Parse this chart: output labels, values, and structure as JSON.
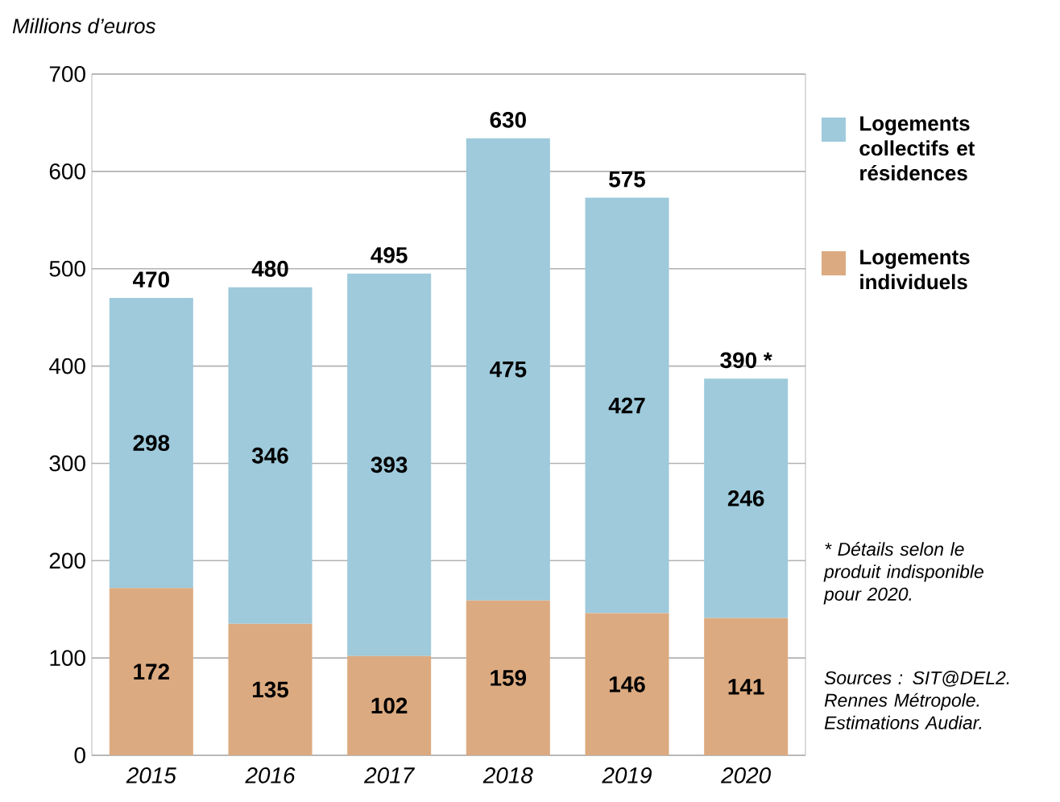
{
  "chart_data": {
    "type": "bar",
    "stacked": true,
    "ylabel": "Millions d’euros",
    "categories": [
      "2015",
      "2016",
      "2017",
      "2018",
      "2019",
      "2020"
    ],
    "series": [
      {
        "name": "Logements individuels",
        "color": "#dcaa80",
        "values": [
          172,
          135,
          102,
          159,
          146,
          141
        ]
      },
      {
        "name": "Logements collectifs et résidences",
        "color": "#9ecadb",
        "values": [
          298,
          346,
          393,
          475,
          427,
          246
        ]
      }
    ],
    "data_labels": true,
    "ylim": [
      0,
      700
    ],
    "yticks": [
      0,
      100,
      200,
      300,
      400,
      500,
      600,
      700
    ],
    "grid": "y",
    "legend": "right",
    "annotations": [
      {
        "text": "470",
        "x": "2015",
        "y": 470
      },
      {
        "text": "480",
        "x": "2016",
        "y": 481
      },
      {
        "text": "495",
        "x": "2017",
        "y": 495
      },
      {
        "text": "630",
        "x": "2018",
        "y": 634
      },
      {
        "text": "575",
        "x": "2019",
        "y": 573
      },
      {
        "text": "390 *",
        "x": "2020",
        "y": 387
      },
      "* Détails selon le produit indisponible pour 2020.",
      "Sources : SIT@DEL2. Rennes Métropole. Estimations Audiar."
    ]
  }
}
